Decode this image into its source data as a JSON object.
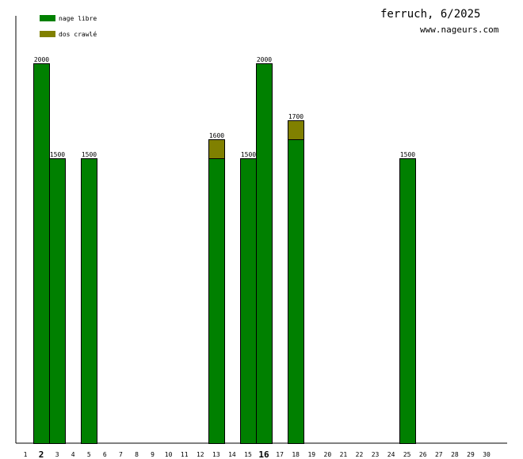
{
  "header": {
    "title": "ferruch, 6/2025",
    "site": "www.nageurs.com"
  },
  "legend": [
    {
      "label": "nage libre",
      "color": "#008000"
    },
    {
      "label": "dos crawlé",
      "color": "#808000"
    }
  ],
  "chart_data": {
    "type": "bar",
    "stacked": true,
    "categories": [
      "1",
      "2",
      "3",
      "4",
      "5",
      "6",
      "7",
      "8",
      "9",
      "10",
      "11",
      "12",
      "13",
      "14",
      "15",
      "16",
      "17",
      "18",
      "19",
      "20",
      "21",
      "22",
      "23",
      "24",
      "25",
      "26",
      "27",
      "28",
      "29",
      "30"
    ],
    "highlighted_categories": [
      "2",
      "16"
    ],
    "series": [
      {
        "name": "nage libre",
        "color": "#008000",
        "values": [
          0,
          2000,
          1500,
          0,
          1500,
          0,
          0,
          0,
          0,
          0,
          0,
          0,
          1500,
          0,
          1500,
          2000,
          0,
          1600,
          0,
          0,
          0,
          0,
          0,
          0,
          1500,
          0,
          0,
          0,
          0,
          0
        ]
      },
      {
        "name": "dos crawlé",
        "color": "#808000",
        "values": [
          0,
          0,
          0,
          0,
          0,
          0,
          0,
          0,
          0,
          0,
          0,
          0,
          100,
          0,
          0,
          0,
          0,
          100,
          0,
          0,
          0,
          0,
          0,
          0,
          0,
          0,
          0,
          0,
          0,
          0
        ]
      }
    ],
    "totals": [
      0,
      2000,
      1500,
      0,
      1500,
      0,
      0,
      0,
      0,
      0,
      0,
      0,
      1600,
      0,
      1500,
      2000,
      0,
      1700,
      0,
      0,
      0,
      0,
      0,
      0,
      1500,
      0,
      0,
      0,
      0,
      0
    ],
    "ylim": [
      0,
      2000
    ],
    "xlabel": "",
    "ylabel": "",
    "grid": false,
    "legend_position": "top-left"
  }
}
